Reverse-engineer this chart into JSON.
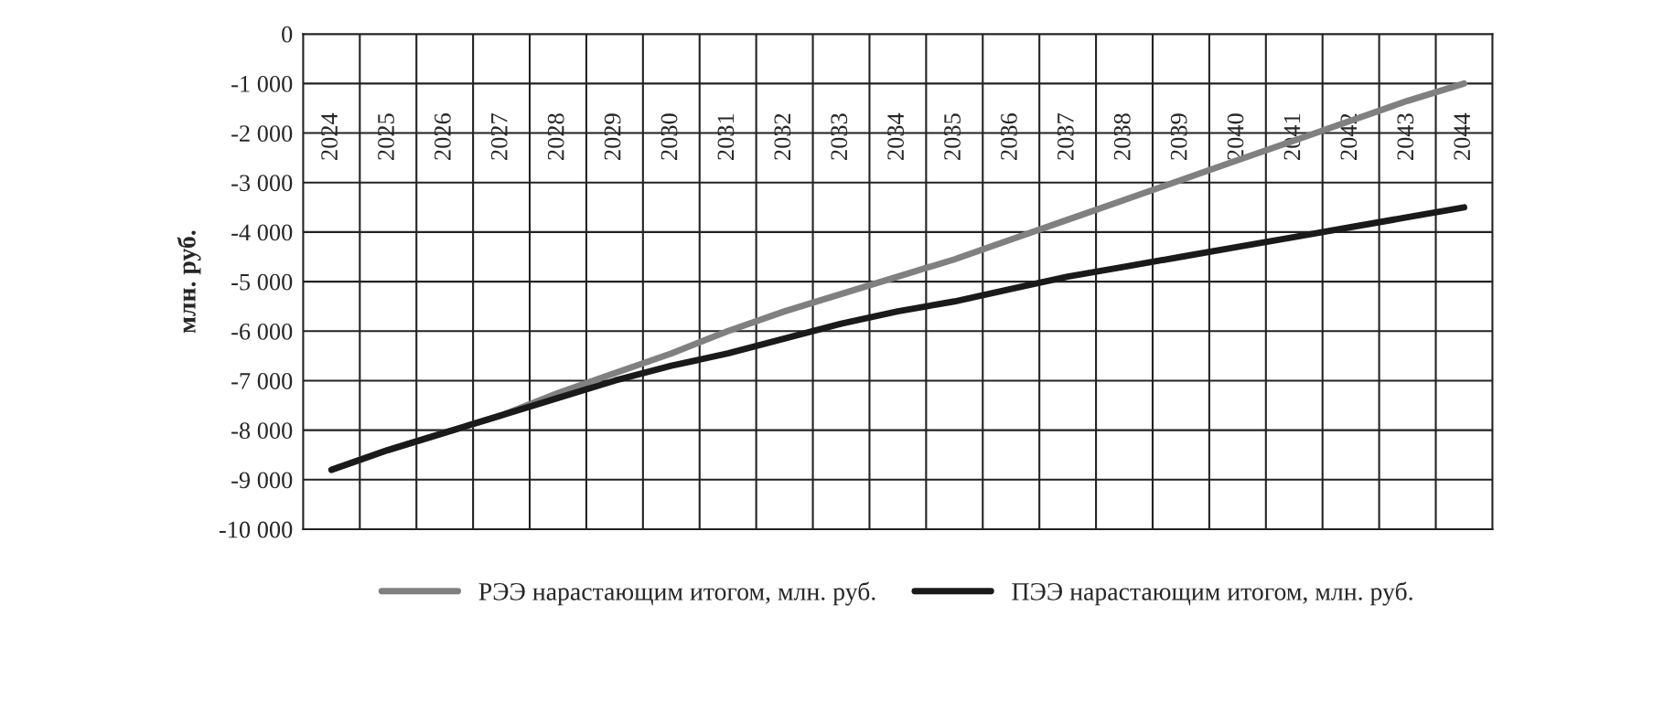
{
  "chart_data": {
    "type": "line",
    "ylabel": "млн. руб.",
    "categories": [
      "2024",
      "2025",
      "2026",
      "2027",
      "2028",
      "2029",
      "2030",
      "2031",
      "2032",
      "2033",
      "2034",
      "2035",
      "2036",
      "2037",
      "2038",
      "2039",
      "2040",
      "2041",
      "2042",
      "2043",
      "2044"
    ],
    "series": [
      {
        "name": "РЭЭ нарастающим итогом, млн. руб.",
        "color": "#808080",
        "values": [
          -8800,
          -8400,
          -8050,
          -7700,
          -7250,
          -6850,
          -6450,
          -6000,
          -5600,
          -5250,
          -4900,
          -4550,
          -4150,
          -3750,
          -3350,
          -2950,
          -2550,
          -2150,
          -1750,
          -1350,
          -1000
        ]
      },
      {
        "name": "ПЭЭ нарастающим итогом, млн. руб.",
        "color": "#1a1a1a",
        "values": [
          -8800,
          -8400,
          -8050,
          -7700,
          -7350,
          -7000,
          -6700,
          -6450,
          -6150,
          -5850,
          -5600,
          -5400,
          -5150,
          -4900,
          -4700,
          -4500,
          -4300,
          -4100,
          -3900,
          -3700,
          -3500
        ]
      }
    ],
    "ylim": [
      -10000,
      0
    ],
    "yticks": [
      0,
      {
        "value": -1000,
        "label": "-1 000"
      },
      {
        "value": -2000,
        "label": "-2 000"
      },
      {
        "value": -3000,
        "label": "-3 000"
      },
      {
        "value": -4000,
        "label": "-4 000"
      },
      {
        "value": -5000,
        "label": "-5 000"
      },
      {
        "value": -6000,
        "label": "-6 000"
      },
      {
        "value": -7000,
        "label": "-7 000"
      },
      {
        "value": -8000,
        "label": "-8 000"
      },
      {
        "value": -9000,
        "label": "-9 000"
      },
      {
        "value": -10000,
        "label": "-10 000"
      }
    ],
    "grid": true,
    "legend": "bottom",
    "marker": "none",
    "line_style": "solid"
  }
}
